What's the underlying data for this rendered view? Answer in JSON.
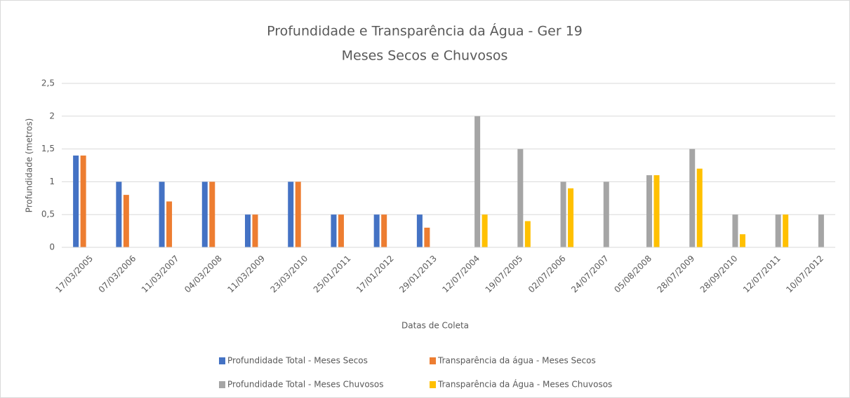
{
  "chart_data": {
    "type": "bar",
    "title": "Profundidade e Transparência da Água - Ger 19",
    "subtitle": "Meses Secos e Chuvosos",
    "x_label": "Datas de Coleta",
    "y_label": "Profundidade (metros)",
    "categories": [
      "17/03/2005",
      "07/03/2006",
      "11/03/2007",
      "04/03/2008",
      "11/03/2009",
      "23/03/2010",
      "25/01/2011",
      "17/01/2012",
      "29/01/2013",
      "12/07/2004",
      "19/07/2005",
      "02/07/2006",
      "24/07/2007",
      "05/08/2008",
      "28/07/2009",
      "28/09/2010",
      "12/07/2011",
      "10/07/2012"
    ],
    "series": [
      {
        "name": "Profundidade Total - Meses Secos",
        "color": "#4472c4",
        "values": [
          1.4,
          1,
          1,
          1,
          0.5,
          1,
          0.5,
          0.5,
          0.5,
          null,
          null,
          null,
          null,
          null,
          null,
          null,
          null,
          null
        ]
      },
      {
        "name": "Transparência da água - Meses Secos",
        "color": "#ed7d31",
        "values": [
          1.4,
          0.8,
          0.7,
          1,
          0.5,
          1,
          0.5,
          0.5,
          0.3,
          null,
          null,
          null,
          null,
          null,
          null,
          null,
          null,
          null
        ]
      },
      {
        "name": "Profundidade Total - Meses Chuvosos",
        "color": "#a5a5a5",
        "values": [
          null,
          null,
          null,
          null,
          null,
          null,
          null,
          null,
          null,
          2,
          1.5,
          1,
          1,
          1.1,
          1.5,
          0.5,
          0.5,
          0.5
        ]
      },
      {
        "name": "Transparência da Água - Meses Chuvosos",
        "color": "#ffc000",
        "values": [
          null,
          null,
          null,
          null,
          null,
          null,
          null,
          null,
          null,
          0.5,
          0.4,
          0.9,
          null,
          1.1,
          1.2,
          0.2,
          0.5,
          null
        ]
      }
    ],
    "ylim": [
      0,
      2.5
    ],
    "yticks": [
      0,
      {
        "value": 0.5,
        "label": "0,5"
      },
      1,
      {
        "value": 1.5,
        "label": "1,5"
      },
      2,
      {
        "value": 2.5,
        "label": "2,5"
      }
    ],
    "grid": true
  }
}
